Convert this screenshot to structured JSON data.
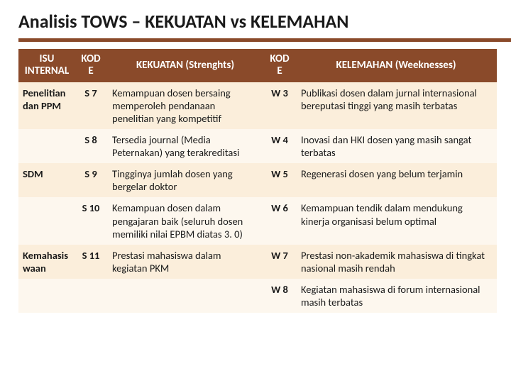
{
  "title": "Analisis TOWS – KEKUATAN vs KELEMAHAN",
  "headers": {
    "issue": "ISU INTERNAL",
    "code_s": "KOD E",
    "strength": "KEKUATAN (Strenghts)",
    "code_w": "KOD E",
    "weakness": "KELEMAHAN (Weeknesses)"
  },
  "rows": [
    {
      "issue": "Penelitian dan PPM",
      "scode": "S 7",
      "strength": "Kemampuan dosen bersaing memperoleh pendanaan penelitian yang kompetitif",
      "wcode": "W 3",
      "weakness": "Publikasi dosen dalam jurnal internasional bereputasi tinggi yang masih terbatas"
    },
    {
      "issue": "",
      "scode": "S 8",
      "strength": "Tersedia journal (Media Peternakan) yang terakreditasi",
      "wcode": "W 4",
      "weakness": "Inovasi dan HKI dosen yang masih sangat terbatas"
    },
    {
      "issue": "SDM",
      "scode": "S 9",
      "strength": "Tingginya jumlah dosen yang bergelar doktor",
      "wcode": "W 5",
      "weakness": "Regenerasi dosen yang belum terjamin"
    },
    {
      "issue": "",
      "scode": "S 10",
      "strength": "Kemampuan dosen dalam pengajaran baik (seluruh dosen memiliki nilai EPBM diatas 3. 0)",
      "wcode": "W 6",
      "weakness": "Kemampuan tendik dalam mendukung kinerja organisasi belum optimal"
    },
    {
      "issue": "Kemahasis waan",
      "scode": "S 11",
      "strength": "Prestasi mahasiswa dalam kegiatan PKM",
      "wcode": "W 7",
      "weakness": "Prestasi non-akademik mahasiswa di tingkat nasional masih rendah"
    },
    {
      "issue": "",
      "scode": "",
      "strength": "",
      "wcode": "W 8",
      "weakness": "Kegiatan mahasiswa di forum internasional masih terbatas"
    }
  ],
  "colors": {
    "header_bg": "#8a4a2a",
    "header_text": "#ffffff",
    "band_a": "#fbeedb",
    "band_b": "#fdf7ee",
    "text": "#1a1a1a"
  }
}
